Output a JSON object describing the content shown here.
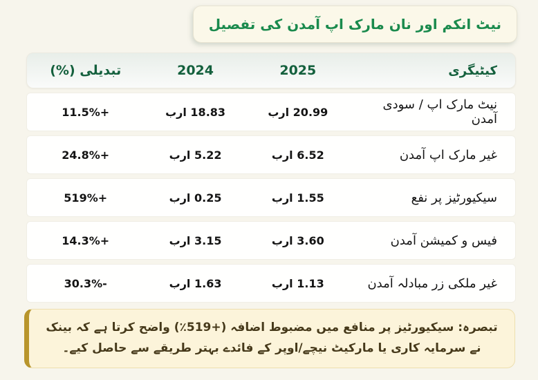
{
  "title": "نیٹ انکم اور نان مارک اپ آمدن کی تفصیل",
  "table": {
    "headers": {
      "category": "کیٹیگری",
      "y2025": "2025",
      "y2024": "2024",
      "change": "تبدیلی (%)"
    },
    "rows": [
      {
        "category": "نیٹ مارک اپ / سودی آمدن",
        "v2025": "20.99 ارب",
        "v2024": "18.83 ارب",
        "change": "+11.5%"
      },
      {
        "category": "غیر مارک اپ آمدن",
        "v2025": "6.52 ارب",
        "v2024": "5.22 ارب",
        "change": "+24.8%"
      },
      {
        "category": "سیکیورٹیز پر نفع",
        "v2025": "1.55 ارب",
        "v2024": "0.25 ارب",
        "change": "+519%"
      },
      {
        "category": "فیس و کمیشن آمدن",
        "v2025": "3.60 ارب",
        "v2024": "3.15 ارب",
        "change": "+14.3%"
      },
      {
        "category": "غیر ملکی زر مبادلہ آمدن",
        "v2025": "1.13 ارب",
        "v2024": "1.63 ارب",
        "change": "-30.3%"
      }
    ]
  },
  "note": {
    "before": "تبصرہ: سیکیورٹیز پر منافع میں مضبوط اضافہ ",
    "highlight": "(٪519+)",
    "after": " واضح کرتا ہے کہ بینک نے سرمایہ کاری یا مارکیٹ نیچے/اوپر کے فائدے بہتر طریقے سے حاصل کیے۔"
  },
  "colors": {
    "page_bg": "#f7f5ec",
    "header_green": "#14603d",
    "title_green": "#1a8a4d",
    "note_bg": "#fcf4da",
    "note_gold": "#b8952c",
    "row_bg": "#fffffe"
  },
  "chart_data": {
    "type": "table",
    "title": "نیٹ انکم اور نان مارک اپ آمدن کی تفصیل",
    "columns": [
      "کیٹیگری",
      "2025",
      "2024",
      "تبدیلی (%)"
    ],
    "rows": [
      [
        "نیٹ مارک اپ / سودی آمدن",
        "20.99 ارب",
        "18.83 ارب",
        "+11.5%"
      ],
      [
        "غیر مارک اپ آمدن",
        "6.52 ارب",
        "5.22 ارب",
        "+24.8%"
      ],
      [
        "سیکیورٹیز پر نفع",
        "1.55 ارب",
        "0.25 ارب",
        "+519%"
      ],
      [
        "فیس و کمیشن آمدن",
        "3.60 ارب",
        "3.15 ارب",
        "+14.3%"
      ],
      [
        "غیر ملکی زر مبادلہ آمدن",
        "1.13 ارب",
        "1.63 ارب",
        "-30.3%"
      ]
    ],
    "values_2025_billion": [
      20.99,
      6.52,
      1.55,
      3.6,
      1.13
    ],
    "values_2024_billion": [
      18.83,
      5.22,
      0.25,
      3.15,
      1.63
    ],
    "change_percent": [
      11.5,
      24.8,
      519,
      14.3,
      -30.3
    ],
    "note": "تبصرہ: سیکیورٹیز پر منافع میں مضبوط اضافہ (+519٪) واضح کرتا ہے کہ بینک نے سرمایہ کاری یا مارکیٹ نیچے/اوپر کے فائدے بہتر طریقے سے حاصل کیے۔"
  }
}
